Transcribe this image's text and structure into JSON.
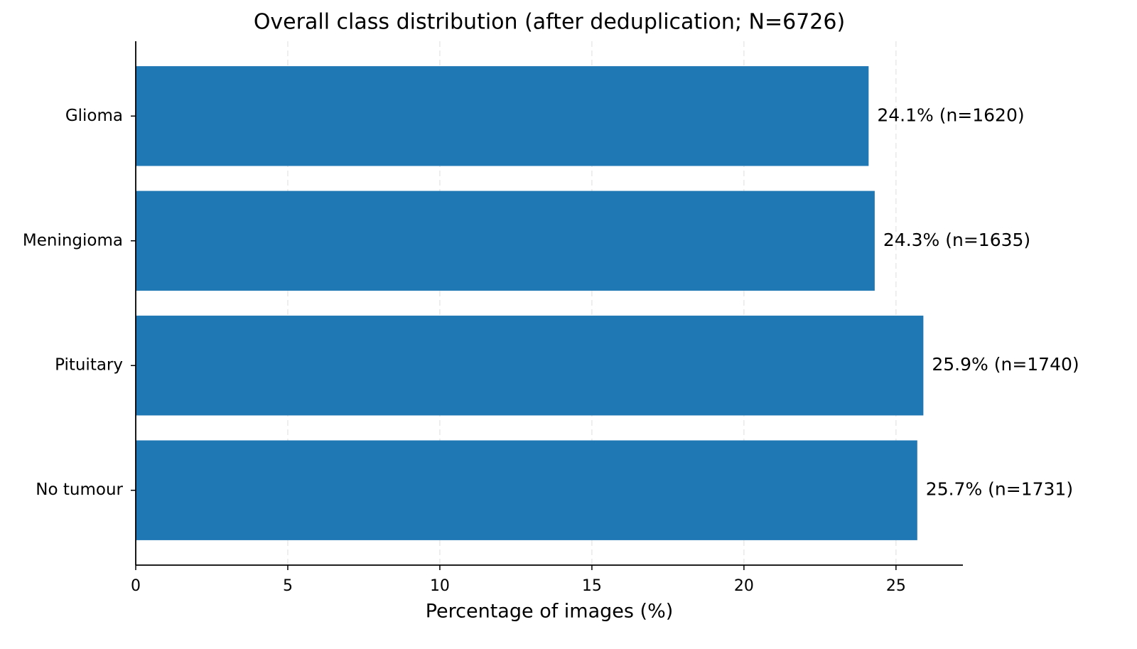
{
  "chart_data": {
    "type": "barh",
    "title": "Overall class distribution (after deduplication; N=6726)",
    "x_label": "Percentage of images (%)",
    "categories": [
      "Glioma",
      "Meningioma",
      "Pituitary",
      "No tumour"
    ],
    "values": [
      24.1,
      24.3,
      25.9,
      25.7
    ],
    "value_labels": [
      "24.1%  (n=1620)",
      "24.3%  (n=1635)",
      "25.9%  (n=1740)",
      "25.7%  (n=1731)"
    ],
    "color": "#1f77b4",
    "xlim": [
      0,
      27.2
    ],
    "xticks": [
      0,
      5,
      10,
      15,
      20,
      25
    ],
    "grid": true
  }
}
